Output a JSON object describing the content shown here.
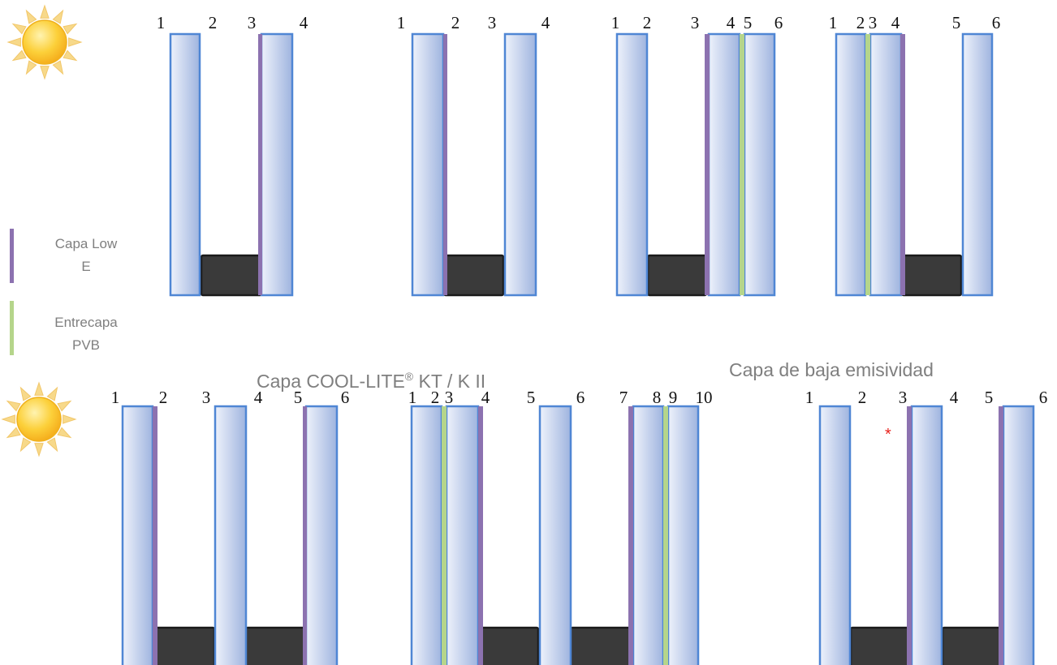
{
  "legend": {
    "low_e_label_line1": "Capa Low",
    "low_e_label_line2": "E",
    "pvb_label_line1": "Entrecapa",
    "pvb_label_line2": "PVB",
    "low_e_color": "#8c72b0",
    "pvb_color": "#b5d58b"
  },
  "captions": {
    "cool_lite_prefix": "Capa COOL-LITE",
    "cool_lite_sup": "®",
    "cool_lite_suffix": " KT / K II",
    "low_emissivity": "Capa de baja emisividad",
    "asterisk": "*"
  },
  "colors": {
    "glass_fill_light": "#eef2fb",
    "glass_fill_dark": "#9fb4df",
    "glass_stroke": "#4f86d4",
    "spacer_fill": "#3a3a3a",
    "spacer_stroke": "#1a1a1a",
    "sun_fill": "#fcc52a",
    "sun_ray": "#f7d98a"
  },
  "icons": [
    "sun-icon"
  ],
  "top_row": [
    {
      "labels": [
        "1",
        "2",
        "3",
        "4"
      ]
    },
    {
      "labels": [
        "1",
        "2",
        "3",
        "4"
      ]
    },
    {
      "labels": [
        "1",
        "2",
        "3",
        "4",
        "5",
        "6"
      ]
    },
    {
      "labels": [
        "1",
        "2",
        "3",
        "4",
        "5",
        "6"
      ]
    }
  ],
  "bottom_row": [
    {
      "labels": [
        "1",
        "2",
        "3",
        "4",
        "5",
        "6"
      ]
    },
    {
      "labels": [
        "1",
        "2",
        "3",
        "4",
        "5",
        "6",
        "7",
        "8",
        "9",
        "10"
      ]
    },
    {
      "labels": [
        "1",
        "2",
        "3",
        "4",
        "5",
        "6"
      ]
    }
  ]
}
